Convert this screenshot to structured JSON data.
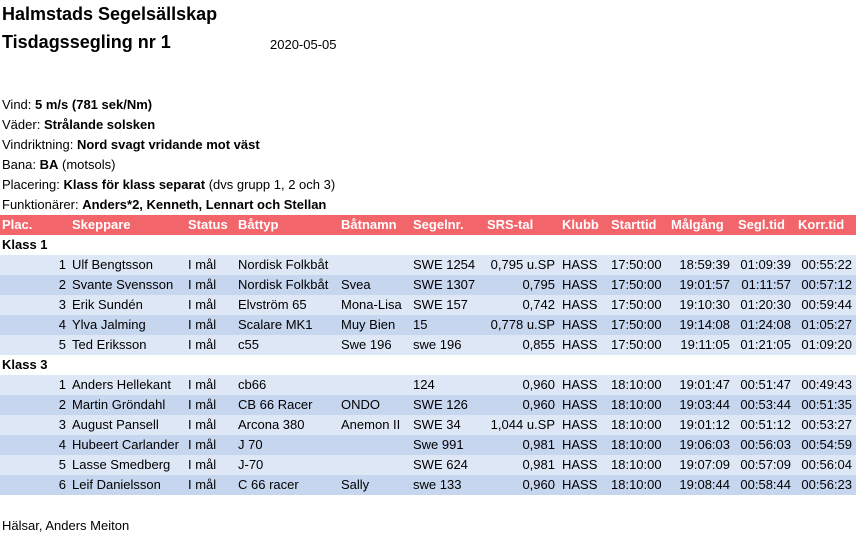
{
  "header": {
    "club": "Halmstads Segelsällskap",
    "event": "Tisdagssegling nr 1",
    "date": "2020-05-05"
  },
  "info": [
    {
      "label": "Vind:",
      "value": "5 m/s (781 sek/Nm)"
    },
    {
      "label": "Väder:",
      "value": "Strålande solsken"
    },
    {
      "label": "Vindriktning:",
      "value": "Nord svagt vridande mot väst"
    },
    {
      "label": "Bana:",
      "value": "BA",
      "note": "(motsols)"
    },
    {
      "label": "Placering:",
      "value": "Klass för klass separat",
      "note": "(dvs grupp 1, 2 och 3)"
    },
    {
      "label": "Funktionärer:",
      "value": "Anders*2, Kenneth, Lennart och Stellan"
    }
  ],
  "table": {
    "columns": [
      "Plac.",
      "Skeppare",
      "Status",
      "Båttyp",
      "Båtnamn",
      "Segelnr.",
      "SRS-tal",
      "Klubb",
      "Starttid",
      "Målgång",
      "Segl.tid",
      "Korr.tid"
    ],
    "groups": [
      {
        "name": "Klass 1",
        "rows": [
          [
            "1",
            "Ulf Bengtsson",
            "I mål",
            "Nordisk Folkbåt",
            null,
            "SWE 1254",
            "0,795 u.SP",
            "HASS",
            "17:50:00",
            "18:59:39",
            "01:09:39",
            "00:55:22"
          ],
          [
            "2",
            "Svante Svensson",
            "I mål",
            "Nordisk Folkbåt",
            "Svea",
            "SWE 1307",
            "0,795",
            "HASS",
            "17:50:00",
            "19:01:57",
            "01:11:57",
            "00:57:12"
          ],
          [
            "3",
            "Erik Sundén",
            "I mål",
            "Elvström 65",
            "Mona-Lisa",
            "SWE 157",
            "0,742",
            "HASS",
            "17:50:00",
            "19:10:30",
            "01:20:30",
            "00:59:44"
          ],
          [
            "4",
            "Ylva Jalming",
            "I mål",
            "Scalare MK1",
            "Muy Bien",
            "15",
            "0,778 u.SP",
            "HASS",
            "17:50:00",
            "19:14:08",
            "01:24:08",
            "01:05:27"
          ],
          [
            "5",
            "Ted Eriksson",
            "I mål",
            "c55",
            "Swe 196",
            "swe 196",
            "0,855",
            "HASS",
            "17:50:00",
            "19:11:05",
            "01:21:05",
            "01:09:20"
          ]
        ]
      },
      {
        "name": "Klass 3",
        "rows": [
          [
            "1",
            "Anders Hellekant",
            "I mål",
            "cb66",
            null,
            "124",
            "0,960",
            "HASS",
            "18:10:00",
            "19:01:47",
            "00:51:47",
            "00:49:43"
          ],
          [
            "2",
            "Martin Gröndahl",
            "I mål",
            "CB 66 Racer",
            "ONDO",
            "SWE 126",
            "0,960",
            "HASS",
            "18:10:00",
            "19:03:44",
            "00:53:44",
            "00:51:35"
          ],
          [
            "3",
            "August Pansell",
            "I mål",
            "Arcona 380",
            "Anemon II",
            "SWE 34",
            "1,044 u.SP",
            "HASS",
            "18:10:00",
            "19:01:12",
            "00:51:12",
            "00:53:27"
          ],
          [
            "4",
            "Hubeert Carlander",
            "I mål",
            "J 70",
            null,
            "Swe 991",
            "0,981",
            "HASS",
            "18:10:00",
            "19:06:03",
            "00:56:03",
            "00:54:59"
          ],
          [
            "5",
            "Lasse Smedberg",
            "I mål",
            "J-70",
            null,
            "SWE 624",
            "0,981",
            "HASS",
            "18:10:00",
            "19:07:09",
            "00:57:09",
            "00:56:04"
          ],
          [
            "6",
            "Leif Danielsson",
            "I mål",
            "C 66 racer",
            "Sally",
            "swe 133",
            "0,960",
            "HASS",
            "18:10:00",
            "19:08:44",
            "00:58:44",
            "00:56:23"
          ]
        ]
      }
    ]
  },
  "footer": "Hälsar, Anders Meiton"
}
